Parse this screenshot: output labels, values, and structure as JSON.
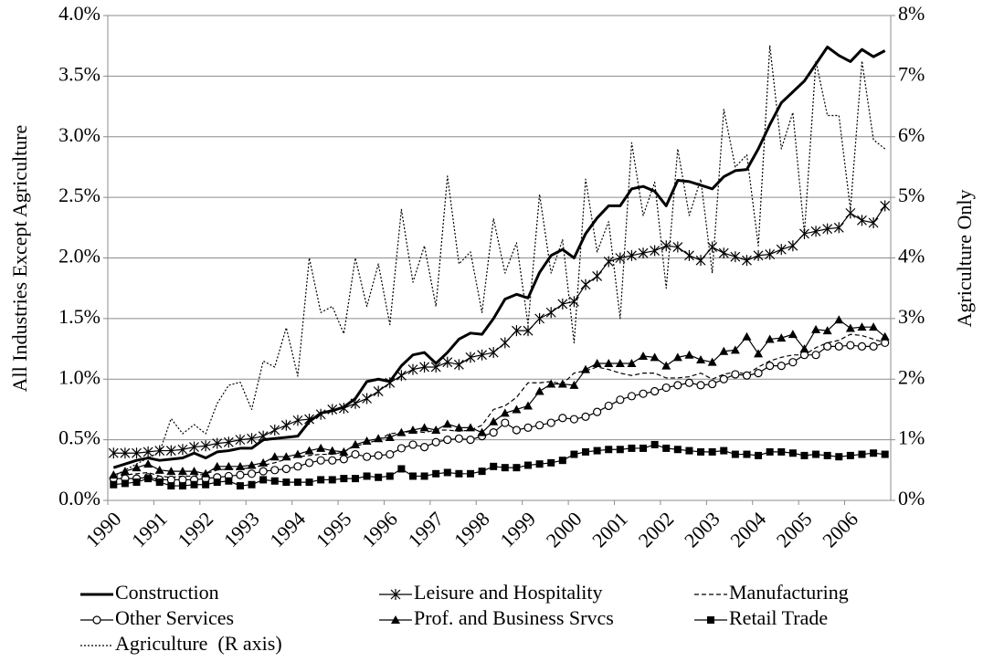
{
  "chart_data": {
    "type": "line",
    "x_label": null,
    "y_label": "All Industries Except Agriculture",
    "y2_label": "Agriculture Only",
    "categories": [
      "1990",
      null,
      null,
      null,
      "1991",
      null,
      null,
      null,
      "1992",
      null,
      null,
      null,
      "1993",
      null,
      null,
      null,
      "1994",
      null,
      null,
      null,
      "1995",
      null,
      null,
      null,
      "1996",
      null,
      null,
      null,
      "1997",
      null,
      null,
      null,
      "1998",
      null,
      null,
      null,
      "1999",
      null,
      null,
      null,
      "2000",
      null,
      null,
      null,
      "2001",
      null,
      null,
      null,
      "2002",
      null,
      null,
      null,
      "2003",
      null,
      null,
      null,
      "2004",
      null,
      null,
      null,
      "2005",
      null,
      null,
      null,
      "2006",
      null,
      null,
      null
    ],
    "ylim": [
      0,
      4
    ],
    "yticks": [
      {
        "value": 0,
        "label": "0.0%"
      },
      {
        "value": 0.5,
        "label": "0.5%"
      },
      {
        "value": 1,
        "label": "1.0%"
      },
      {
        "value": 1.5,
        "label": "1.5%"
      },
      {
        "value": 2,
        "label": "2.0%"
      },
      {
        "value": 2.5,
        "label": "2.5%"
      },
      {
        "value": 3,
        "label": "3.0%"
      },
      {
        "value": 3.5,
        "label": "3.5%"
      },
      {
        "value": 4,
        "label": "4.0%"
      }
    ],
    "y2lim": [
      0,
      8
    ],
    "y2ticks": [
      {
        "value": 0,
        "label": "0%"
      },
      {
        "value": 1,
        "label": "1%"
      },
      {
        "value": 2,
        "label": "2%"
      },
      {
        "value": 3,
        "label": "3%"
      },
      {
        "value": 4,
        "label": "4%"
      },
      {
        "value": 5,
        "label": "5%"
      },
      {
        "value": 6,
        "label": "6%"
      },
      {
        "value": 7,
        "label": "7%"
      },
      {
        "value": 8,
        "label": "8%"
      }
    ],
    "grid": true,
    "legend": "bottom",
    "series": [
      {
        "name": "Construction",
        "color": "#000000",
        "line_style": "solid",
        "line_width": 3,
        "marker": "none",
        "values": [
          0.27,
          0.3,
          0.33,
          0.35,
          0.33,
          0.34,
          0.35,
          0.39,
          0.35,
          0.4,
          0.41,
          0.43,
          0.43,
          0.5,
          0.51,
          0.52,
          0.53,
          0.65,
          0.72,
          0.74,
          0.77,
          0.84,
          0.98,
          1.0,
          0.98,
          1.11,
          1.2,
          1.22,
          1.13,
          1.22,
          1.33,
          1.38,
          1.37,
          1.5,
          1.66,
          1.7,
          1.67,
          1.88,
          2.02,
          2.07,
          2.0,
          2.2,
          2.33,
          2.43,
          2.43,
          2.57,
          2.59,
          2.55,
          2.43,
          2.64,
          2.63,
          2.6,
          2.57,
          2.67,
          2.72,
          2.73,
          2.9,
          3.1,
          3.28,
          3.37,
          3.46,
          3.6,
          3.74,
          3.67,
          3.62,
          3.72,
          3.66,
          3.71
        ]
      },
      {
        "name": "Leisure and Hospitality",
        "color": "#000000",
        "line_style": "solid",
        "line_width": 1.2,
        "marker": "star",
        "values": [
          0.39,
          0.39,
          0.39,
          0.4,
          0.41,
          0.41,
          0.42,
          0.44,
          0.45,
          0.47,
          0.48,
          0.5,
          0.51,
          0.53,
          0.58,
          0.62,
          0.66,
          0.67,
          0.71,
          0.75,
          0.76,
          0.8,
          0.84,
          0.9,
          0.97,
          1.03,
          1.08,
          1.1,
          1.1,
          1.14,
          1.12,
          1.18,
          1.2,
          1.22,
          1.3,
          1.4,
          1.4,
          1.5,
          1.55,
          1.62,
          1.64,
          1.78,
          1.85,
          1.97,
          2.0,
          2.02,
          2.04,
          2.06,
          2.1,
          2.09,
          2.02,
          1.98,
          2.09,
          2.04,
          2.01,
          1.98,
          2.02,
          2.03,
          2.07,
          2.1,
          2.2,
          2.22,
          2.24,
          2.25,
          2.37,
          2.31,
          2.29,
          2.43
        ]
      },
      {
        "name": "Manufacturing",
        "color": "#000000",
        "line_style": "dashed",
        "line_width": 1.2,
        "marker": "none",
        "values": [
          0.2,
          0.21,
          0.22,
          0.23,
          0.2,
          0.19,
          0.2,
          0.2,
          0.22,
          0.25,
          0.26,
          0.26,
          0.27,
          0.29,
          0.31,
          0.34,
          0.36,
          0.37,
          0.38,
          0.38,
          0.4,
          0.45,
          0.47,
          0.5,
          0.55,
          0.56,
          0.57,
          0.56,
          0.58,
          0.58,
          0.57,
          0.58,
          0.62,
          0.75,
          0.78,
          0.85,
          0.97,
          0.97,
          0.98,
          0.96,
          1.05,
          1.07,
          1.1,
          1.08,
          1.05,
          1.03,
          1.05,
          1.05,
          1.01,
          1.01,
          1.02,
          1.05,
          1.0,
          1.04,
          1.06,
          1.04,
          1.1,
          1.15,
          1.18,
          1.2,
          1.2,
          1.26,
          1.3,
          1.32,
          1.37,
          1.36,
          1.33,
          1.3
        ]
      },
      {
        "name": "Other Services",
        "color": "#000000",
        "line_style": "solid",
        "line_width": 1.2,
        "marker": "circle",
        "values": [
          0.18,
          0.18,
          0.18,
          0.19,
          0.17,
          0.17,
          0.17,
          0.17,
          0.18,
          0.19,
          0.2,
          0.21,
          0.22,
          0.24,
          0.25,
          0.26,
          0.28,
          0.31,
          0.33,
          0.33,
          0.34,
          0.38,
          0.36,
          0.37,
          0.38,
          0.43,
          0.46,
          0.44,
          0.48,
          0.5,
          0.51,
          0.5,
          0.53,
          0.56,
          0.64,
          0.58,
          0.6,
          0.62,
          0.64,
          0.68,
          0.67,
          0.69,
          0.73,
          0.78,
          0.83,
          0.86,
          0.88,
          0.9,
          0.93,
          0.95,
          0.97,
          0.95,
          0.96,
          1.0,
          1.04,
          1.03,
          1.05,
          1.11,
          1.11,
          1.14,
          1.2,
          1.2,
          1.27,
          1.27,
          1.28,
          1.27,
          1.27,
          1.3
        ]
      },
      {
        "name": "Prof. and Business Srvcs",
        "color": "#000000",
        "line_style": "solid",
        "line_width": 1.2,
        "marker": "triangle",
        "values": [
          0.21,
          0.24,
          0.27,
          0.3,
          0.25,
          0.24,
          0.24,
          0.24,
          0.22,
          0.28,
          0.28,
          0.28,
          0.29,
          0.31,
          0.36,
          0.36,
          0.38,
          0.41,
          0.43,
          0.41,
          0.4,
          0.46,
          0.49,
          0.51,
          0.52,
          0.56,
          0.58,
          0.6,
          0.58,
          0.63,
          0.6,
          0.6,
          0.56,
          0.65,
          0.72,
          0.75,
          0.78,
          0.9,
          0.96,
          0.96,
          0.95,
          1.08,
          1.13,
          1.13,
          1.13,
          1.13,
          1.19,
          1.18,
          1.11,
          1.18,
          1.2,
          1.16,
          1.14,
          1.23,
          1.24,
          1.35,
          1.21,
          1.33,
          1.34,
          1.37,
          1.25,
          1.41,
          1.4,
          1.49,
          1.42,
          1.43,
          1.43,
          1.35
        ]
      },
      {
        "name": "Retail Trade",
        "color": "#000000",
        "line_style": "solid",
        "line_width": 1.2,
        "marker": "square",
        "values": [
          0.13,
          0.14,
          0.15,
          0.18,
          0.15,
          0.12,
          0.12,
          0.13,
          0.13,
          0.15,
          0.16,
          0.12,
          0.13,
          0.17,
          0.16,
          0.15,
          0.15,
          0.15,
          0.17,
          0.17,
          0.18,
          0.18,
          0.2,
          0.19,
          0.2,
          0.26,
          0.2,
          0.2,
          0.22,
          0.23,
          0.22,
          0.22,
          0.24,
          0.28,
          0.27,
          0.27,
          0.29,
          0.3,
          0.31,
          0.33,
          0.38,
          0.4,
          0.41,
          0.42,
          0.42,
          0.43,
          0.43,
          0.46,
          0.43,
          0.42,
          0.41,
          0.4,
          0.4,
          0.41,
          0.38,
          0.38,
          0.37,
          0.4,
          0.4,
          0.39,
          0.37,
          0.38,
          0.37,
          0.36,
          0.37,
          0.38,
          0.39,
          0.38
        ]
      },
      {
        "name": "Agriculture  (R axis)",
        "color": "#000000",
        "line_style": "dotted",
        "line_width": 1.2,
        "marker": "none",
        "axis": "y2",
        "values": [
          0.4,
          0.5,
          0.6,
          0.7,
          0.8,
          1.35,
          1.1,
          1.25,
          1.1,
          1.6,
          1.9,
          1.95,
          1.5,
          2.3,
          2.2,
          2.85,
          2.05,
          4.0,
          3.1,
          3.2,
          2.75,
          4.0,
          3.2,
          3.9,
          2.9,
          4.8,
          3.6,
          4.2,
          3.2,
          5.35,
          3.9,
          4.1,
          3.1,
          4.65,
          3.75,
          4.25,
          2.9,
          5.05,
          3.75,
          4.3,
          2.6,
          5.3,
          4.1,
          4.6,
          3.0,
          5.9,
          4.7,
          5.25,
          3.5,
          5.8,
          4.7,
          5.3,
          3.75,
          6.45,
          5.5,
          5.7,
          4.2,
          7.5,
          5.8,
          6.4,
          4.4,
          7.25,
          6.35,
          6.35,
          4.8,
          7.25,
          5.95,
          5.8
        ]
      }
    ]
  }
}
